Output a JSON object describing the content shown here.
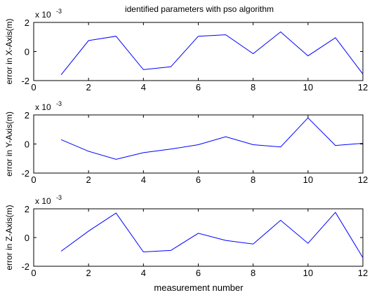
{
  "figure": {
    "title": "identified parameters with pso algorithm",
    "xlabel": "measurement number"
  },
  "chart_data": [
    {
      "type": "line",
      "title": "identified parameters with pso algorithm",
      "xlabel": "",
      "ylabel": "error in X-Axis(m)",
      "scale_note": "x 10",
      "scale_exponent": "-3",
      "xlim": [
        0,
        12
      ],
      "ylim": [
        -2,
        2
      ],
      "xticks": [
        0,
        2,
        4,
        6,
        8,
        10,
        12
      ],
      "yticks": [
        -2,
        0,
        2
      ],
      "grid": false,
      "color": "#0000ff",
      "series": [
        {
          "x": [
            1,
            2,
            3,
            4,
            5,
            6,
            7,
            8,
            9,
            10,
            11,
            12
          ],
          "values": [
            -1.6,
            0.75,
            1.05,
            -1.25,
            -1.05,
            1.05,
            1.15,
            -0.15,
            1.35,
            -0.3,
            0.95,
            -1.55
          ]
        }
      ]
    },
    {
      "type": "line",
      "title": "",
      "xlabel": "",
      "ylabel": "error in Y-Axis(m)",
      "scale_note": "x 10",
      "scale_exponent": "-3",
      "xlim": [
        0,
        12
      ],
      "ylim": [
        -2,
        2
      ],
      "xticks": [
        0,
        2,
        4,
        6,
        8,
        10,
        12
      ],
      "yticks": [
        -2,
        0,
        2
      ],
      "grid": false,
      "color": "#0000ff",
      "series": [
        {
          "x": [
            1,
            2,
            3,
            4,
            5,
            6,
            7,
            8,
            9,
            10,
            11,
            12
          ],
          "values": [
            0.3,
            -0.5,
            -1.05,
            -0.6,
            -0.35,
            -0.05,
            0.5,
            -0.05,
            -0.2,
            1.8,
            -0.1,
            0.05
          ]
        }
      ]
    },
    {
      "type": "line",
      "title": "",
      "xlabel": "measurement number",
      "ylabel": "error in Z-Axis(m)",
      "scale_note": "x 10",
      "scale_exponent": "-3",
      "xlim": [
        0,
        12
      ],
      "ylim": [
        -2,
        2
      ],
      "xticks": [
        0,
        2,
        4,
        6,
        8,
        10,
        12
      ],
      "yticks": [
        -2,
        0,
        2
      ],
      "grid": false,
      "color": "#0000ff",
      "series": [
        {
          "x": [
            1,
            2,
            3,
            4,
            5,
            6,
            7,
            8,
            9,
            10,
            11,
            12
          ],
          "values": [
            -0.95,
            0.45,
            1.7,
            -1.0,
            -0.9,
            0.3,
            -0.2,
            -0.45,
            1.2,
            -0.4,
            1.75,
            -1.4
          ]
        }
      ]
    }
  ]
}
